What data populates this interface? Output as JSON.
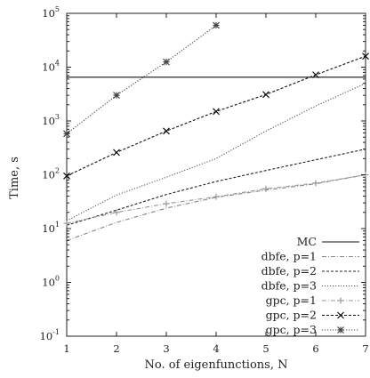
{
  "chart_data": {
    "type": "line",
    "xlabel": "No. of eigenfunctions, N",
    "ylabel": "Time, s",
    "xlim": [
      1,
      7
    ],
    "ylim": [
      0.1,
      100000
    ],
    "yscale": "log",
    "grid": false,
    "legend_position": "bottom-right",
    "x_ticks": [
      1,
      2,
      3,
      4,
      5,
      6,
      7
    ],
    "x_tick_labels": [
      "1",
      "2",
      "3",
      "4",
      "5",
      "6",
      "7"
    ],
    "y_ticks": [
      {
        "value": 0.1,
        "base": "10",
        "exp": "-1"
      },
      {
        "value": 1,
        "base": "10",
        "exp": "0"
      },
      {
        "value": 10,
        "base": "10",
        "exp": "1"
      },
      {
        "value": 100,
        "base": "10",
        "exp": "2"
      },
      {
        "value": 1000,
        "base": "10",
        "exp": "3"
      },
      {
        "value": 10000,
        "base": "10",
        "exp": "4"
      },
      {
        "value": 100000,
        "base": "10",
        "exp": "5"
      }
    ],
    "series": [
      {
        "name": "MC",
        "style": "solid",
        "marker": "none",
        "x": [
          1,
          7
        ],
        "y": [
          6500,
          6500
        ]
      },
      {
        "name": "dbfe, p=1",
        "style": "dashdot",
        "marker": "none",
        "x": [
          1,
          2,
          3,
          4,
          5,
          6,
          7
        ],
        "y": [
          6,
          13,
          24,
          38,
          52,
          68,
          100
        ]
      },
      {
        "name": "dbfe, p=2",
        "style": "dashed",
        "marker": "none",
        "x": [
          1,
          2,
          3,
          4,
          5,
          6,
          7
        ],
        "y": [
          11.5,
          22,
          43,
          75,
          120,
          190,
          300
        ]
      },
      {
        "name": "dbfe, p=3",
        "style": "dotted",
        "marker": "none",
        "x": [
          1,
          2,
          3,
          4,
          5,
          6,
          7
        ],
        "y": [
          14,
          42,
          90,
          200,
          650,
          1900,
          5000
        ]
      },
      {
        "name": "gpc, p=1",
        "style": "dashdot",
        "marker": "plus",
        "x": [
          1,
          2,
          3,
          4,
          5,
          6,
          7
        ],
        "y": [
          12.5,
          20,
          29,
          39,
          55,
          70,
          100
        ]
      },
      {
        "name": "gpc, p=2",
        "style": "dashed",
        "marker": "x",
        "x": [
          1,
          2,
          3,
          4,
          5,
          6,
          7
        ],
        "y": [
          95,
          260,
          650,
          1500,
          3100,
          7200,
          16000
        ]
      },
      {
        "name": "gpc, p=3",
        "style": "dotted",
        "marker": "star",
        "x": [
          1,
          2,
          3,
          4
        ],
        "y": [
          580,
          3000,
          12500,
          60000
        ]
      }
    ]
  }
}
